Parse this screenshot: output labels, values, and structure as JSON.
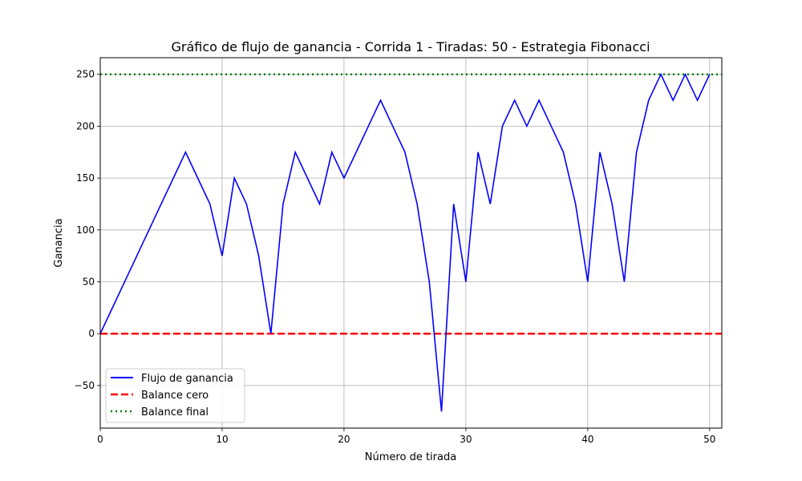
{
  "chart_data": {
    "type": "line",
    "title": "Gráfico de flujo de ganancia - Corrida 1 - Tiradas: 50 - Estrategia Fibonacci",
    "xlabel": "Número de tirada",
    "ylabel": "Ganancia",
    "xlim": [
      0,
      51
    ],
    "ylim": [
      -91,
      266
    ],
    "xticks": [
      0,
      10,
      20,
      30,
      40,
      50
    ],
    "yticks": [
      -50,
      0,
      50,
      100,
      150,
      200,
      250
    ],
    "ytick_labels": [
      "−50",
      "0",
      "50",
      "100",
      "150",
      "200",
      "250"
    ],
    "grid": true,
    "legend_position": "lower-left",
    "series": [
      {
        "name": "Flujo de ganancia",
        "color": "#0000ff",
        "style": "solid",
        "x": [
          0,
          1,
          2,
          3,
          4,
          5,
          6,
          7,
          8,
          9,
          10,
          11,
          12,
          13,
          14,
          15,
          16,
          17,
          18,
          19,
          20,
          21,
          22,
          23,
          24,
          25,
          26,
          27,
          28,
          29,
          30,
          31,
          32,
          33,
          34,
          35,
          36,
          37,
          38,
          39,
          40,
          41,
          42,
          43,
          44,
          45,
          46,
          47,
          48,
          49,
          50
        ],
        "y": [
          0,
          25,
          50,
          75,
          100,
          125,
          150,
          175,
          150,
          125,
          75,
          150,
          125,
          75,
          0,
          125,
          175,
          150,
          125,
          175,
          150,
          175,
          200,
          225,
          200,
          175,
          125,
          50,
          -75,
          125,
          50,
          175,
          125,
          200,
          225,
          200,
          225,
          200,
          175,
          125,
          50,
          175,
          125,
          50,
          175,
          225,
          250,
          225,
          250,
          225,
          250
        ]
      },
      {
        "name": "Balance cero",
        "color": "#ff0000",
        "style": "dashed",
        "hline": 0
      },
      {
        "name": "Balance final",
        "color": "#008000",
        "style": "dotted",
        "hline": 250
      }
    ]
  }
}
